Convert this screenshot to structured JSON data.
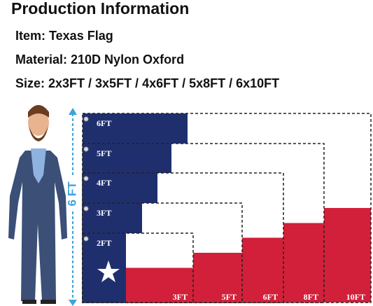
{
  "header": {
    "title": "Production Information"
  },
  "specs": [
    "Item: Texas Flag",
    "Material: 210D Nylon Oxford",
    "Size: 2x3FT / 3x5FT / 4x6FT / 5x8FT / 6x10FT"
  ],
  "person_height": "6 FT",
  "flags": [
    {
      "height": "2FT",
      "width": "3FT"
    },
    {
      "height": "3FT",
      "width": "5FT"
    },
    {
      "height": "4FT",
      "width": "6FT"
    },
    {
      "height": "5FT",
      "width": "8FT"
    },
    {
      "height": "6FT",
      "width": "10FT"
    }
  ]
}
